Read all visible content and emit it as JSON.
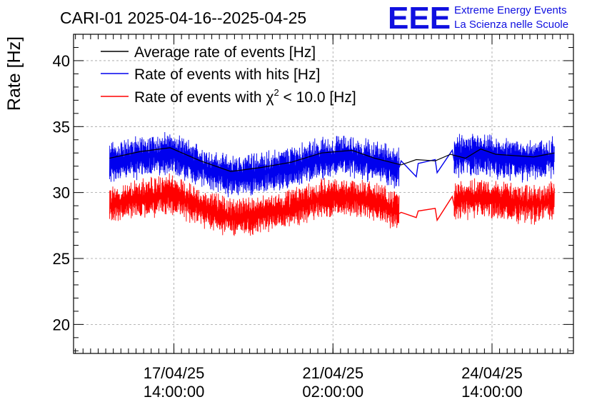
{
  "header": {
    "title": "CARI-01 2025-04-16--2025-04-25"
  },
  "logo": {
    "mark": "EEE",
    "line1": "Extreme Energy Events",
    "line2": "La Scienza nelle Scuole",
    "color": "#1010e0"
  },
  "chart_data": {
    "type": "line",
    "title": "CARI-01 2025-04-16--2025-04-25",
    "ylabel": "Rate [Hz]",
    "xlabel": "",
    "ylim": [
      17.8,
      42.0
    ],
    "yticks": [
      20,
      25,
      30,
      35,
      40
    ],
    "x_domain": [
      "2025-04-15 09:00",
      "2025-04-26 09:00"
    ],
    "xticks": [
      {
        "date": "2025-04-17 14:00",
        "line1": "17/04/25",
        "line2": "14:00:00"
      },
      {
        "date": "2025-04-21 02:00",
        "line1": "21/04/25",
        "line2": "02:00:00"
      },
      {
        "date": "2025-04-24 14:00",
        "line1": "24/04/25",
        "line2": "14:00:00"
      }
    ],
    "grid": true,
    "legend_position": "top-left",
    "series": [
      {
        "name": "Average rate of events [Hz]",
        "color": "#000000",
        "noise": 0,
        "points": [
          [
            "2025-04-16 04:00",
            32.6
          ],
          [
            "2025-04-16 20:00",
            33.1
          ],
          [
            "2025-04-17 12:00",
            33.4
          ],
          [
            "2025-04-18 04:00",
            32.4
          ],
          [
            "2025-04-18 20:00",
            31.6
          ],
          [
            "2025-04-19 12:00",
            31.9
          ],
          [
            "2025-04-20 04:00",
            32.3
          ],
          [
            "2025-04-20 20:00",
            33.0
          ],
          [
            "2025-04-21 12:00",
            33.2
          ],
          [
            "2025-04-22 00:00",
            32.6
          ],
          [
            "2025-04-22 14:00",
            32.1
          ],
          [
            "2025-04-22 22:00",
            32.5
          ],
          [
            "2025-04-23 08:00",
            32.4
          ],
          [
            "2025-04-23 16:00",
            32.9
          ],
          [
            "2025-04-24 00:00",
            32.6
          ],
          [
            "2025-04-24 08:00",
            33.3
          ],
          [
            "2025-04-24 16:00",
            32.9
          ],
          [
            "2025-04-25 12:00",
            32.7
          ],
          [
            "2025-04-25 23:00",
            33.0
          ]
        ]
      },
      {
        "name": "Rate of events with hits [Hz]",
        "color": "#0000ee",
        "noise": 1.45,
        "gaps": [
          [
            "2025-04-22 13:00",
            "2025-04-23 18:00"
          ]
        ],
        "points": [
          [
            "2025-04-16 04:00",
            32.2
          ],
          [
            "2025-04-16 20:00",
            32.7
          ],
          [
            "2025-04-17 12:00",
            33.0
          ],
          [
            "2025-04-18 04:00",
            32.0
          ],
          [
            "2025-04-18 20:00",
            31.2
          ],
          [
            "2025-04-19 12:00",
            31.5
          ],
          [
            "2025-04-20 04:00",
            31.9
          ],
          [
            "2025-04-20 20:00",
            32.6
          ],
          [
            "2025-04-21 12:00",
            32.8
          ],
          [
            "2025-04-22 00:00",
            32.3
          ],
          [
            "2025-04-22 13:00",
            31.9
          ],
          [
            "2025-04-23 18:00",
            32.7
          ],
          [
            "2025-04-24 08:00",
            32.9
          ],
          [
            "2025-04-24 16:00",
            32.6
          ],
          [
            "2025-04-25 12:00",
            32.4
          ],
          [
            "2025-04-25 23:00",
            32.7
          ]
        ],
        "sparse_segment": [
          [
            "2025-04-22 13:00",
            31.9
          ],
          [
            "2025-04-22 14:00",
            32.4
          ],
          [
            "2025-04-22 22:00",
            31.2
          ],
          [
            "2025-04-22 23:00",
            32.2
          ],
          [
            "2025-04-23 08:00",
            32.5
          ],
          [
            "2025-04-23 09:00",
            31.5
          ],
          [
            "2025-04-23 17:00",
            33.2
          ],
          [
            "2025-04-23 18:00",
            32.4
          ]
        ]
      },
      {
        "name": "Rate of events with χ² < 10.0 [Hz]",
        "color": "#ff0000",
        "noise": 1.35,
        "gaps": [
          [
            "2025-04-22 13:00",
            "2025-04-23 18:00"
          ]
        ],
        "points": [
          [
            "2025-04-16 04:00",
            29.0
          ],
          [
            "2025-04-16 20:00",
            29.5
          ],
          [
            "2025-04-17 12:00",
            29.9
          ],
          [
            "2025-04-18 04:00",
            28.9
          ],
          [
            "2025-04-18 20:00",
            28.1
          ],
          [
            "2025-04-19 12:00",
            28.4
          ],
          [
            "2025-04-20 04:00",
            28.8
          ],
          [
            "2025-04-20 20:00",
            29.5
          ],
          [
            "2025-04-21 12:00",
            29.7
          ],
          [
            "2025-04-22 00:00",
            29.3
          ],
          [
            "2025-04-22 13:00",
            28.6
          ],
          [
            "2025-04-23 18:00",
            29.3
          ],
          [
            "2025-04-24 08:00",
            29.7
          ],
          [
            "2025-04-24 16:00",
            29.4
          ],
          [
            "2025-04-25 12:00",
            29.1
          ],
          [
            "2025-04-25 23:00",
            29.4
          ]
        ],
        "sparse_segment": [
          [
            "2025-04-22 13:00",
            28.4
          ],
          [
            "2025-04-22 14:00",
            28.5
          ],
          [
            "2025-04-22 22:00",
            28.1
          ],
          [
            "2025-04-22 23:00",
            28.6
          ],
          [
            "2025-04-23 08:00",
            28.8
          ],
          [
            "2025-04-23 09:00",
            27.9
          ],
          [
            "2025-04-23 17:00",
            29.7
          ],
          [
            "2025-04-23 18:00",
            29.0
          ]
        ]
      }
    ],
    "legend": [
      {
        "label": "Average rate of events [Hz]",
        "color": "#000000"
      },
      {
        "label": "Rate of events with hits [Hz]",
        "color": "#0000ee"
      },
      {
        "label_prefix": "Rate of events with ",
        "label_chi": "χ",
        "label_sup": "2",
        "label_suffix": " < 10.0 [Hz]",
        "color": "#ff0000"
      }
    ]
  }
}
